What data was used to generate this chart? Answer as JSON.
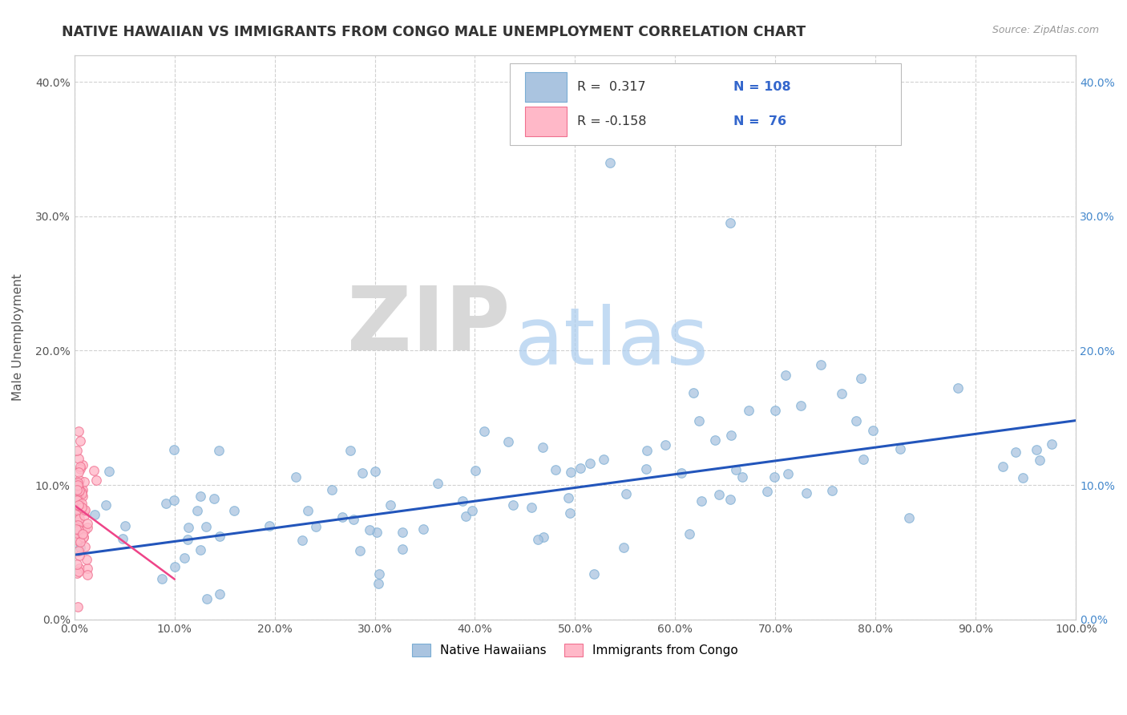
{
  "title": "NATIVE HAWAIIAN VS IMMIGRANTS FROM CONGO MALE UNEMPLOYMENT CORRELATION CHART",
  "source": "Source: ZipAtlas.com",
  "ylabel": "Male Unemployment",
  "xlim": [
    0.0,
    1.0
  ],
  "ylim": [
    0.0,
    0.42
  ],
  "x_tick_labels": [
    "0.0%",
    "10.0%",
    "20.0%",
    "30.0%",
    "40.0%",
    "50.0%",
    "60.0%",
    "70.0%",
    "80.0%",
    "90.0%",
    "100.0%"
  ],
  "x_tick_values": [
    0.0,
    0.1,
    0.2,
    0.3,
    0.4,
    0.5,
    0.6,
    0.7,
    0.8,
    0.9,
    1.0
  ],
  "y_tick_labels": [
    "0.0%",
    "10.0%",
    "20.0%",
    "30.0%",
    "40.0%"
  ],
  "y_tick_values": [
    0.0,
    0.1,
    0.2,
    0.3,
    0.4
  ],
  "background_color": "#ffffff",
  "plot_bg_color": "#ffffff",
  "grid_color": "#cccccc",
  "blue_dot_color": "#aac4e0",
  "blue_dot_edge": "#7aadd4",
  "pink_dot_color": "#ffb8c8",
  "pink_dot_edge": "#f07090",
  "blue_line_color": "#2255bb",
  "pink_line_color": "#ee4488",
  "legend_R1": "0.317",
  "legend_N1": "108",
  "legend_R2": "-0.158",
  "legend_N2": "76",
  "label1": "Native Hawaiians",
  "label2": "Immigrants from Congo",
  "watermark_zip": "ZIP",
  "watermark_atlas": "atlas",
  "watermark_zip_color": "#d8d8d8",
  "watermark_atlas_color": "#aaccee",
  "blue_line_x": [
    0.0,
    1.0
  ],
  "blue_line_y": [
    0.048,
    0.148
  ],
  "pink_line_x": [
    0.0,
    0.1
  ],
  "pink_line_y": [
    0.085,
    0.03
  ]
}
